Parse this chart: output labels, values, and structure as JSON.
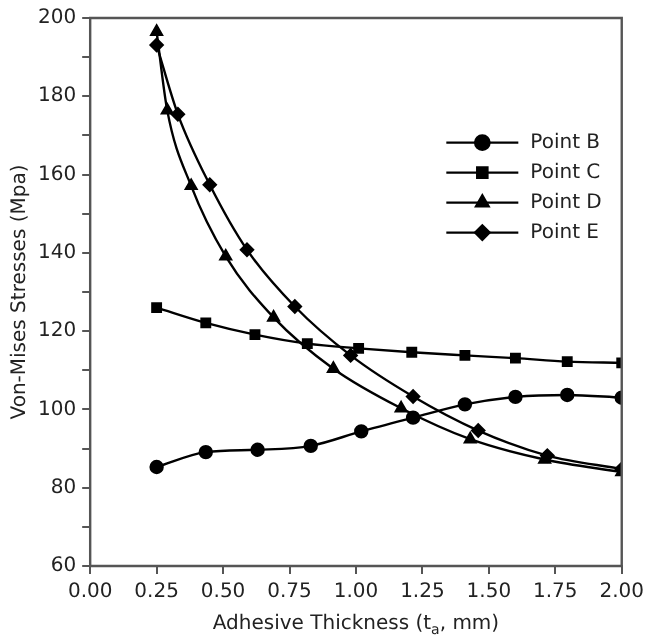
{
  "chart_data": {
    "type": "line",
    "xlabel": "Adhesive Thickness (t$_{a}$, mm)",
    "ylabel": "Von-Mises Stresses (Mpa)",
    "xlim": [
      0,
      2
    ],
    "xticks": [
      {
        "value": 0,
        "label": "0.00"
      },
      {
        "value": 0.25,
        "label": "0.25"
      },
      {
        "value": 0.5,
        "label": "0.50"
      },
      {
        "value": 0.75,
        "label": "0.75"
      },
      {
        "value": 1,
        "label": "1.00"
      },
      {
        "value": 1.25,
        "label": "1.25"
      },
      {
        "value": 1.5,
        "label": "1.50"
      },
      {
        "value": 1.75,
        "label": "1.75"
      },
      {
        "value": 2,
        "label": "2.00"
      }
    ],
    "ylim": [
      60,
      200
    ],
    "yticks": [
      60,
      {
        "value": 70,
        "label": null
      },
      80,
      {
        "value": 90,
        "label": null
      },
      100,
      {
        "value": 110,
        "label": null
      },
      120,
      {
        "value": 130,
        "label": null
      },
      140,
      {
        "value": 150,
        "label": null
      },
      160,
      {
        "value": 170,
        "label": null
      },
      180,
      {
        "value": 190,
        "label": null
      },
      200
    ],
    "grid": false,
    "legend": "right",
    "line_style": "solid",
    "series": [
      {
        "name": "Point B",
        "color": "#000000",
        "marker": "circle",
        "x": [
          0.25,
          0.435,
          0.63,
          0.83,
          1.02,
          1.215,
          1.41,
          1.6,
          1.795,
          2.0
        ],
        "values": [
          85.3,
          89.1,
          89.7,
          90.7,
          94.4,
          97.9,
          101.3,
          103.2,
          103.7,
          103
        ]
      },
      {
        "name": "Point C",
        "color": "#000000",
        "marker": "square",
        "x": [
          0.25,
          0.435,
          0.62,
          0.817,
          1.01,
          1.21,
          1.41,
          1.6,
          1.795,
          2.0
        ],
        "values": [
          126,
          122.1,
          119.1,
          116.8,
          115.6,
          114.6,
          113.8,
          113.1,
          112.2,
          111.9
        ]
      },
      {
        "name": "Point D",
        "color": "#000000",
        "marker": "triangle",
        "x": [
          0.25,
          0.29,
          0.38,
          0.51,
          0.69,
          0.915,
          1.17,
          1.43,
          1.71,
          2.0
        ],
        "values": [
          196.5,
          176.4,
          157.1,
          139.1,
          123.5,
          110.4,
          100.3,
          92.4,
          87.2,
          84
        ]
      },
      {
        "name": "Point E",
        "color": "#000000",
        "marker": "diamond",
        "x": [
          0.25,
          0.33,
          0.45,
          0.59,
          0.77,
          0.98,
          1.215,
          1.46,
          1.72,
          2.0
        ],
        "values": [
          193.1,
          175.4,
          157.4,
          140.8,
          126.3,
          113.8,
          103.3,
          94.6,
          88.2,
          84.8
        ]
      }
    ]
  }
}
